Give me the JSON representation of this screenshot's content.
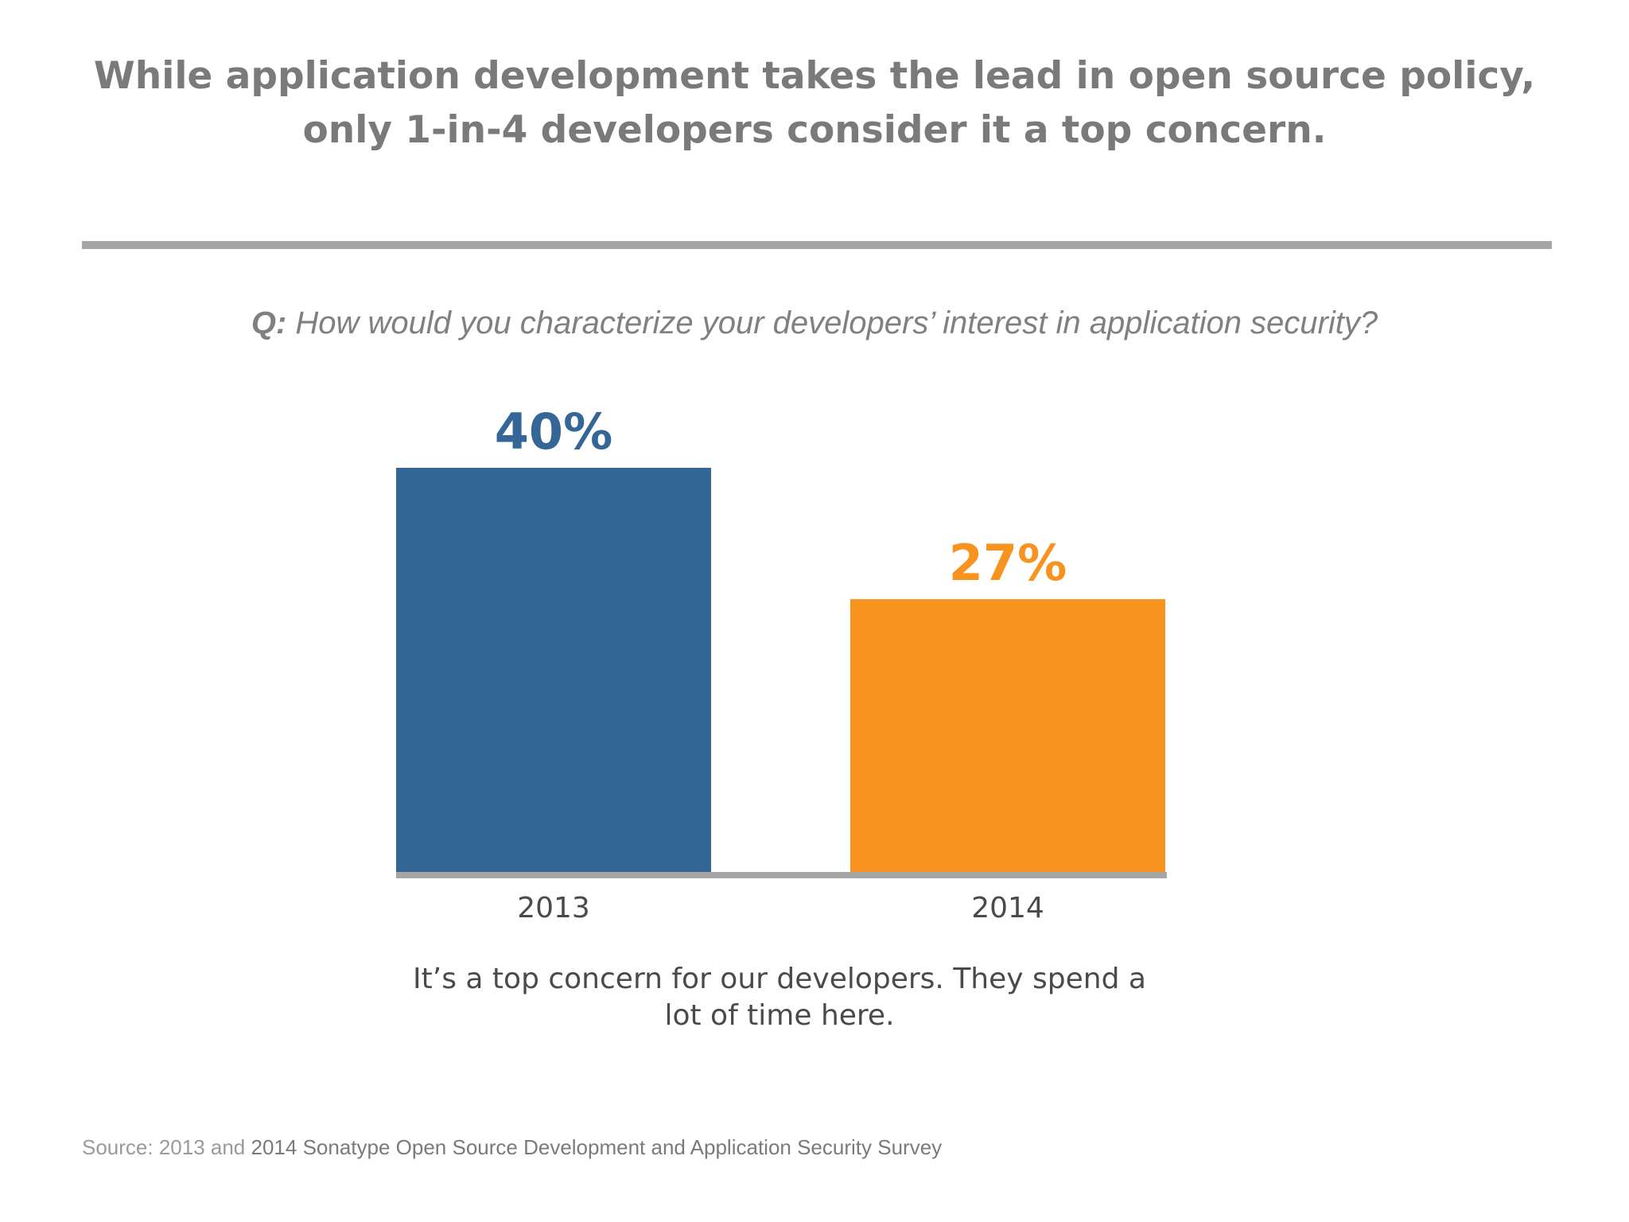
{
  "title": {
    "line1": "While application development takes the lead in open source policy,",
    "line2": "only 1-in-4 developers consider it a top concern."
  },
  "question": {
    "prefix": "Q:",
    "text": " How would you characterize your developers’ interest in application security?"
  },
  "chart_data": {
    "type": "bar",
    "categories": [
      "2013",
      "2014"
    ],
    "values": [
      40,
      27
    ],
    "value_labels": [
      "40%",
      "27%"
    ],
    "colors": [
      "#356796",
      "#f7931e"
    ],
    "label_colors": [
      "#356796",
      "#f7931e"
    ],
    "axis_color": "#a6a6a6",
    "ylim": [
      0,
      40
    ],
    "grid": false,
    "legend": "none"
  },
  "caption": {
    "line1": "It’s a top concern for our developers. They spend a",
    "line2": "lot of time here."
  },
  "source": {
    "prefix": "Source: 2013 and ",
    "rest": "2014 Sonatype Open Source Development and Application Security Survey"
  }
}
